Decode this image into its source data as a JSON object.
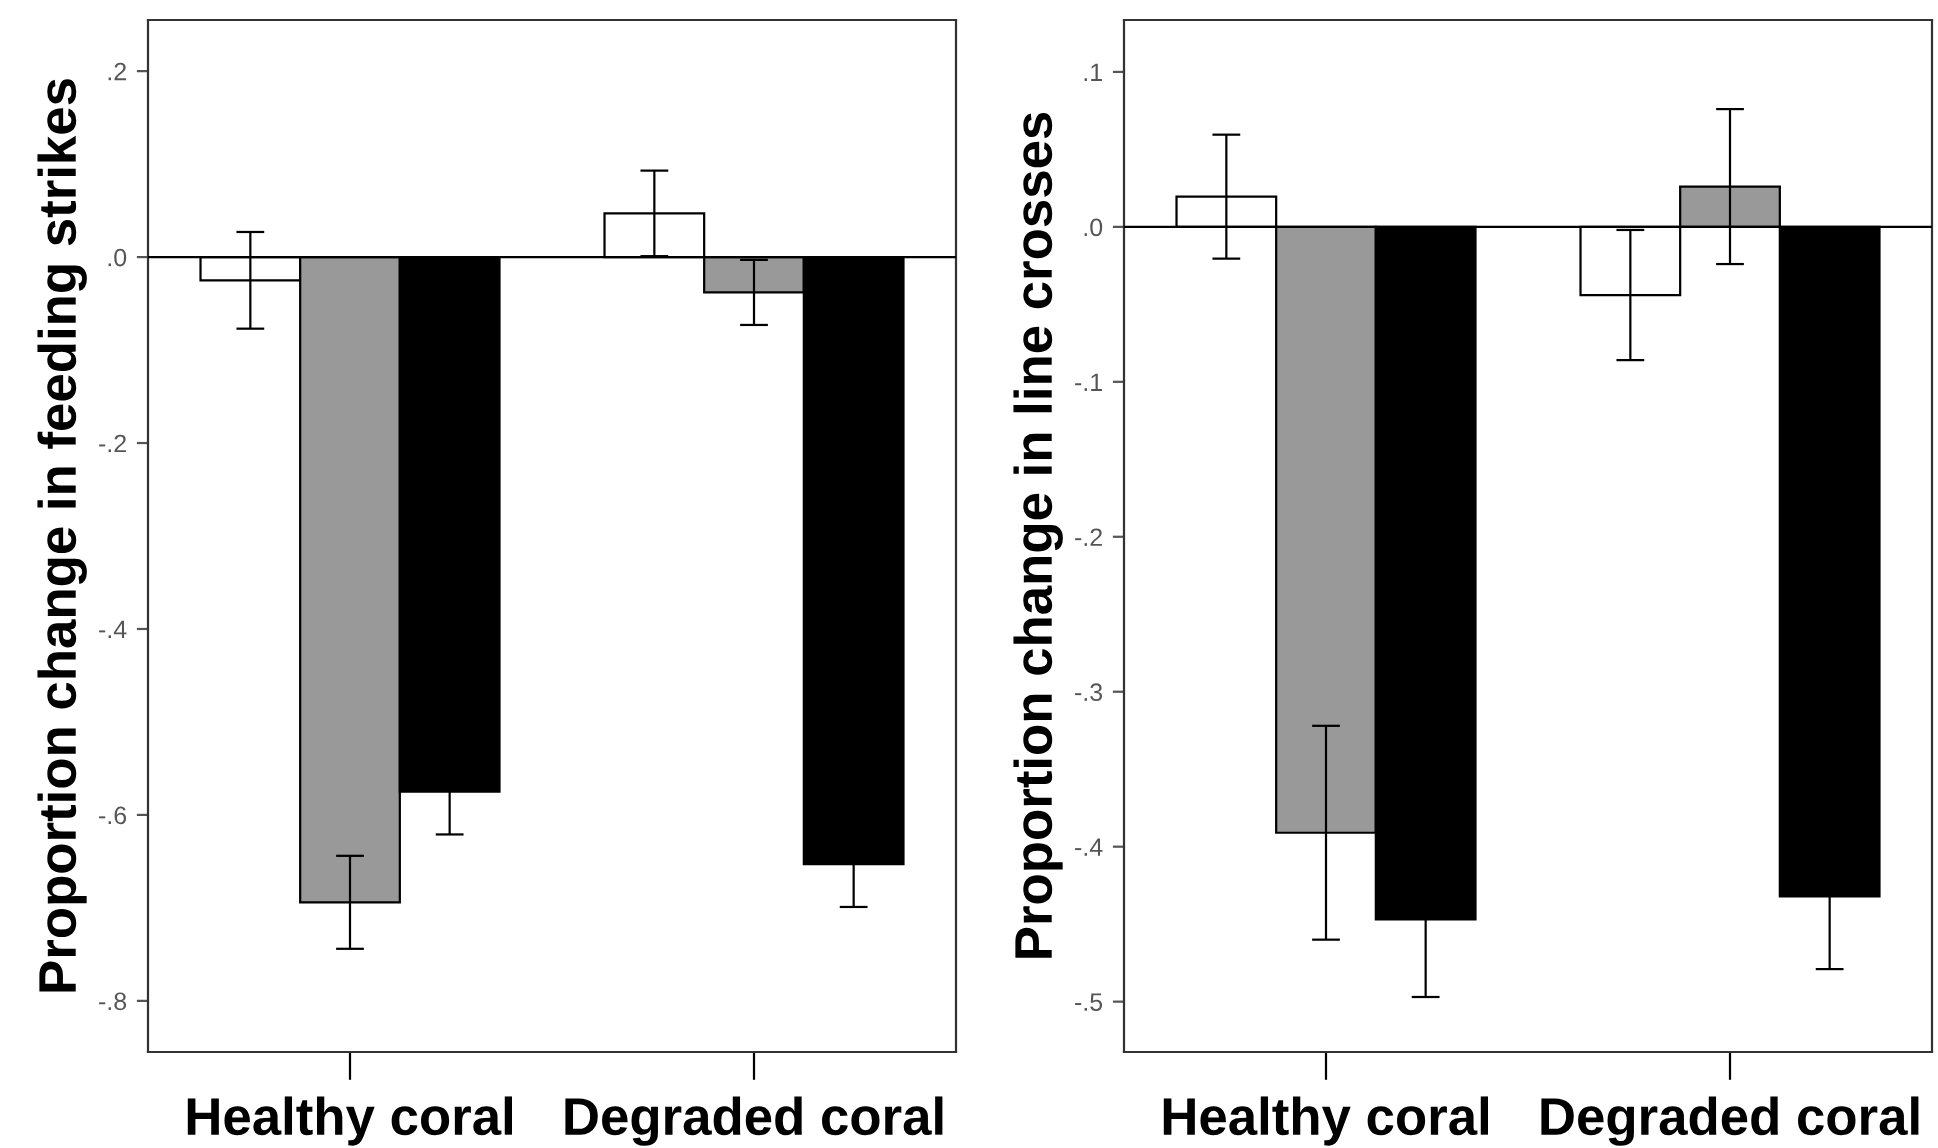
{
  "chart_data": [
    {
      "type": "bar",
      "ylabel": "Proportion change in feeding strikes",
      "categories": [
        "Healthy coral",
        "Degraded coral"
      ],
      "series": [
        {
          "color": "#ffffff",
          "values": [
            -0.025,
            0.047
          ],
          "errors": [
            0.052,
            0.046
          ]
        },
        {
          "color": "#999999",
          "values": [
            -0.694,
            -0.038
          ],
          "errors": [
            0.05,
            0.035
          ]
        },
        {
          "color": "#000000",
          "values": [
            -0.575,
            -0.653
          ],
          "errors": [
            0.046,
            0.046
          ]
        }
      ],
      "ylim": [
        -0.855,
        0.255
      ],
      "yticks": [
        {
          "value": 0.2,
          "label": ".2"
        },
        {
          "value": 0.0,
          "label": ".0"
        },
        {
          "value": -0.2,
          "label": "-.2"
        },
        {
          "value": -0.4,
          "label": "-.4"
        },
        {
          "value": -0.6,
          "label": "-.6"
        },
        {
          "value": -0.8,
          "label": "-.8"
        }
      ],
      "ref_lines": [
        {
          "axis": "y",
          "value": 0,
          "color": "#000000"
        }
      ],
      "grid": false,
      "legend": false
    },
    {
      "type": "bar",
      "ylabel": "Proportion change in line crosses",
      "categories": [
        "Healthy coral",
        "Degraded coral"
      ],
      "series": [
        {
          "color": "#ffffff",
          "values": [
            0.0195,
            -0.044
          ],
          "errors": [
            0.04,
            0.042
          ]
        },
        {
          "color": "#999999",
          "values": [
            -0.391,
            0.026
          ],
          "errors": [
            0.069,
            0.05
          ]
        },
        {
          "color": "#000000",
          "values": [
            -0.447,
            -0.432
          ],
          "errors": [
            0.05,
            0.047
          ]
        }
      ],
      "ylim": [
        -0.5325,
        0.1335
      ],
      "yticks": [
        {
          "value": 0.1,
          "label": ".1"
        },
        {
          "value": 0.0,
          "label": ".0"
        },
        {
          "value": -0.1,
          "label": "-.1"
        },
        {
          "value": -0.2,
          "label": "-.2"
        },
        {
          "value": -0.3,
          "label": "-.3"
        },
        {
          "value": -0.4,
          "label": "-.4"
        },
        {
          "value": -0.5,
          "label": "-.5"
        }
      ],
      "ref_lines": [
        {
          "axis": "y",
          "value": 0,
          "color": "#000000"
        }
      ],
      "grid": false,
      "legend": false
    }
  ]
}
